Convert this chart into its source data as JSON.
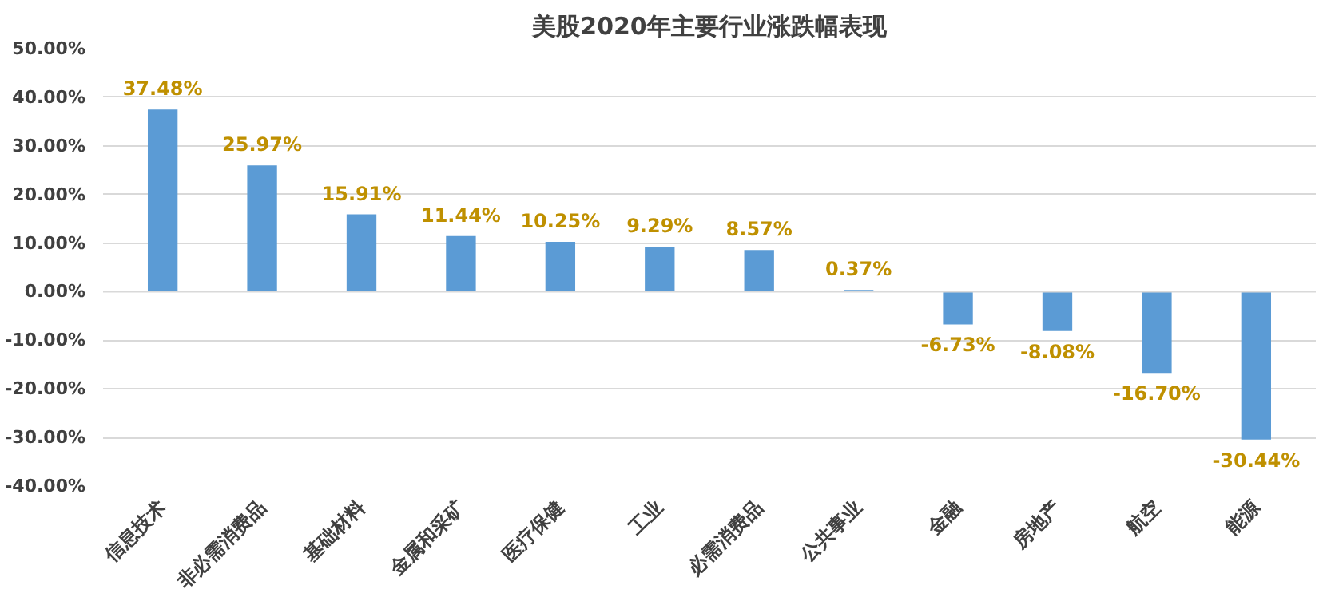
{
  "chart_data": {
    "type": "bar",
    "title": "美股2020年主要行业涨跌幅表现",
    "categories": [
      "信息技术",
      "非必需消费品",
      "基础材料",
      "金属和采矿",
      "医疗保健",
      "工业",
      "必需消费品",
      "公共事业",
      "金融",
      "房地产",
      "航空",
      "能源"
    ],
    "values": [
      37.48,
      25.97,
      15.91,
      11.44,
      10.25,
      9.29,
      8.57,
      0.37,
      -6.73,
      -8.08,
      -16.7,
      -30.44
    ],
    "value_labels": [
      "37.48%",
      "25.97%",
      "15.91%",
      "11.44%",
      "10.25%",
      "9.29%",
      "8.57%",
      "0.37%",
      "-6.73%",
      "-8.08%",
      "-16.70%",
      "-30.44%"
    ],
    "color": "#5b9bd5",
    "ylim": [
      -40,
      50
    ],
    "yticks": [
      {
        "value": -40,
        "label": "-40.00%"
      },
      {
        "value": -30,
        "label": "-30.00%"
      },
      {
        "value": -20,
        "label": "-20.00%"
      },
      {
        "value": -10,
        "label": "-10.00%"
      },
      {
        "value": 0,
        "label": "0.00%"
      },
      {
        "value": 10,
        "label": "10.00%"
      },
      {
        "value": 20,
        "label": "20.00%"
      },
      {
        "value": 30,
        "label": "30.00%"
      },
      {
        "value": 40,
        "label": "40.00%"
      },
      {
        "value": 50,
        "label": "50.00%"
      }
    ],
    "grid": "y"
  }
}
